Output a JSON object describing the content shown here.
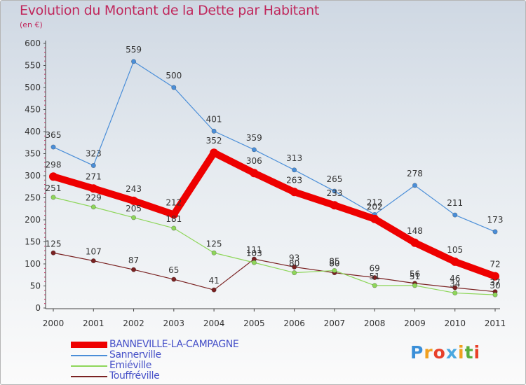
{
  "title": "Evolution du Montant de la Dette par Habitant",
  "subtitle": "(en €)",
  "logo": {
    "text": "Proxiti",
    "colors": [
      "#3a8fd8",
      "#f0a020",
      "#e8402a",
      "#4aa8e0",
      "#f0a020",
      "#5aae3c",
      "#e8402a"
    ]
  },
  "chart_data": {
    "type": "line",
    "x": [
      "2000",
      "2001",
      "2002",
      "2003",
      "2004",
      "2005",
      "2006",
      "2007",
      "2008",
      "2009",
      "2010",
      "2011"
    ],
    "ylim": [
      0,
      600
    ],
    "yticks": [
      "0",
      "50",
      "100",
      "150",
      "200",
      "250",
      "300",
      "350",
      "400",
      "450",
      "500",
      "550",
      "600"
    ],
    "grid": false,
    "legend_position": "bottom-left",
    "series": [
      {
        "name": "BANNEVILLE-LA-CAMPAGNE",
        "color": "#ee0000",
        "values": [
          298,
          271,
          243,
          212,
          352,
          306,
          263,
          233,
          202,
          148,
          105,
          72
        ],
        "labels": [
          "298",
          "271",
          "243",
          "212",
          "352",
          "306",
          "263",
          "233",
          "202",
          "148",
          "105",
          "72"
        ]
      },
      {
        "name": "Sannerville",
        "color": "#4a8ed8",
        "values": [
          365,
          323,
          559,
          500,
          401,
          359,
          313,
          265,
          212,
          278,
          211,
          173
        ],
        "labels": [
          "365",
          "323",
          "559",
          "500",
          "401",
          "359",
          "313",
          "265",
          "212",
          "278",
          "211",
          "173"
        ]
      },
      {
        "name": "Emiéville",
        "color": "#8ed65a",
        "values": [
          251,
          229,
          205,
          181,
          125,
          103,
          80,
          85,
          51,
          51,
          34,
          30
        ],
        "labels": [
          "251",
          "229",
          "205",
          "181",
          "125",
          "103",
          "80",
          "85",
          "51",
          "51",
          "34",
          "30"
        ]
      },
      {
        "name": "Touffréville",
        "color": "#7a2222",
        "values": [
          125,
          107,
          87,
          65,
          41,
          111,
          93,
          80,
          69,
          56,
          46,
          37
        ],
        "labels": [
          "125",
          "107",
          "87",
          "65",
          "41",
          "111",
          "93",
          "80",
          "69",
          "56",
          "46",
          "37"
        ]
      }
    ]
  }
}
